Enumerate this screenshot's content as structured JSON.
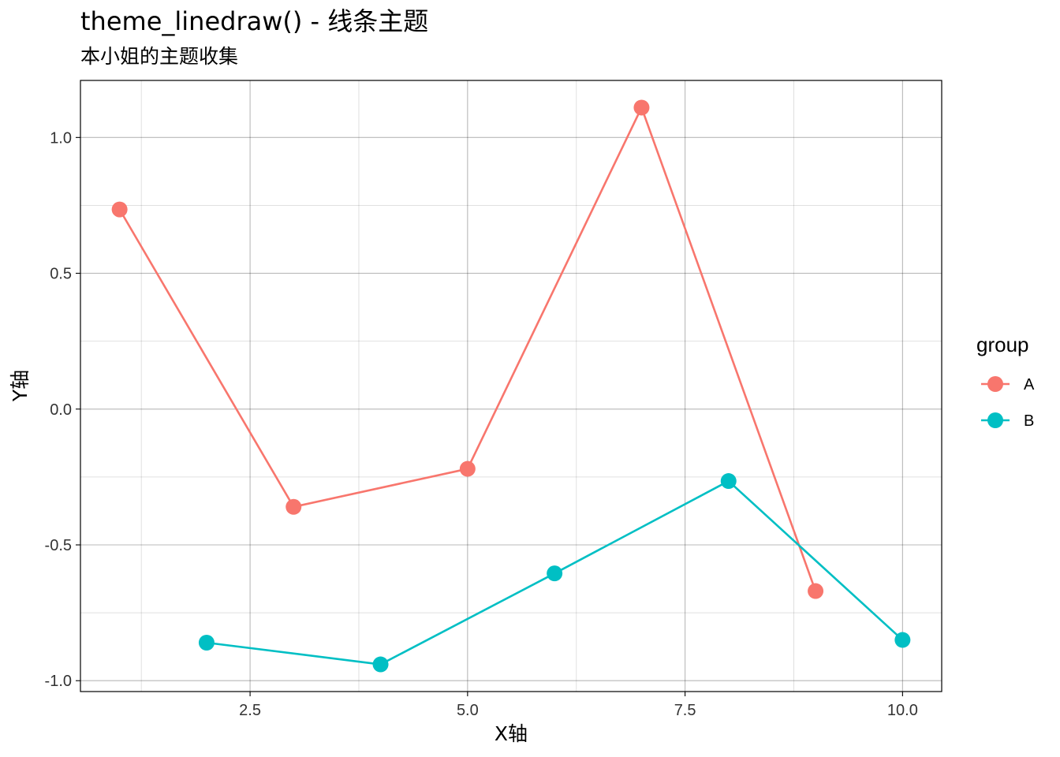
{
  "chart_data": {
    "type": "line",
    "title": "theme_linedraw() - 线条主题",
    "subtitle": "本小姐的主题收集",
    "xlabel": "X轴",
    "ylabel": "Y轴",
    "xlim": [
      0.55,
      10.45
    ],
    "ylim": [
      -1.04,
      1.21
    ],
    "x_ticks": [
      2.5,
      5.0,
      7.5,
      10.0
    ],
    "x_tick_labels": [
      "2.5",
      "5.0",
      "7.5",
      "10.0"
    ],
    "x_minor_ticks": [
      1.25,
      3.75,
      6.25,
      8.75
    ],
    "y_ticks": [
      -1.0,
      -0.5,
      0.0,
      0.5,
      1.0
    ],
    "y_tick_labels": [
      "-1.0",
      "-0.5",
      "0.0",
      "0.5",
      "1.0"
    ],
    "y_minor_ticks": [
      -0.75,
      -0.25,
      0.25,
      0.75
    ],
    "grid": true,
    "legend": {
      "title": "group",
      "position": "right"
    },
    "series": [
      {
        "name": "A",
        "color": "#F8766D",
        "x": [
          1,
          3,
          5,
          7,
          9
        ],
        "y": [
          0.735,
          -0.36,
          -0.22,
          1.11,
          -0.67
        ]
      },
      {
        "name": "B",
        "color": "#00BFC4",
        "x": [
          2,
          4,
          6,
          8,
          10
        ],
        "y": [
          -0.86,
          -0.94,
          -0.605,
          -0.265,
          -0.85
        ]
      }
    ]
  }
}
